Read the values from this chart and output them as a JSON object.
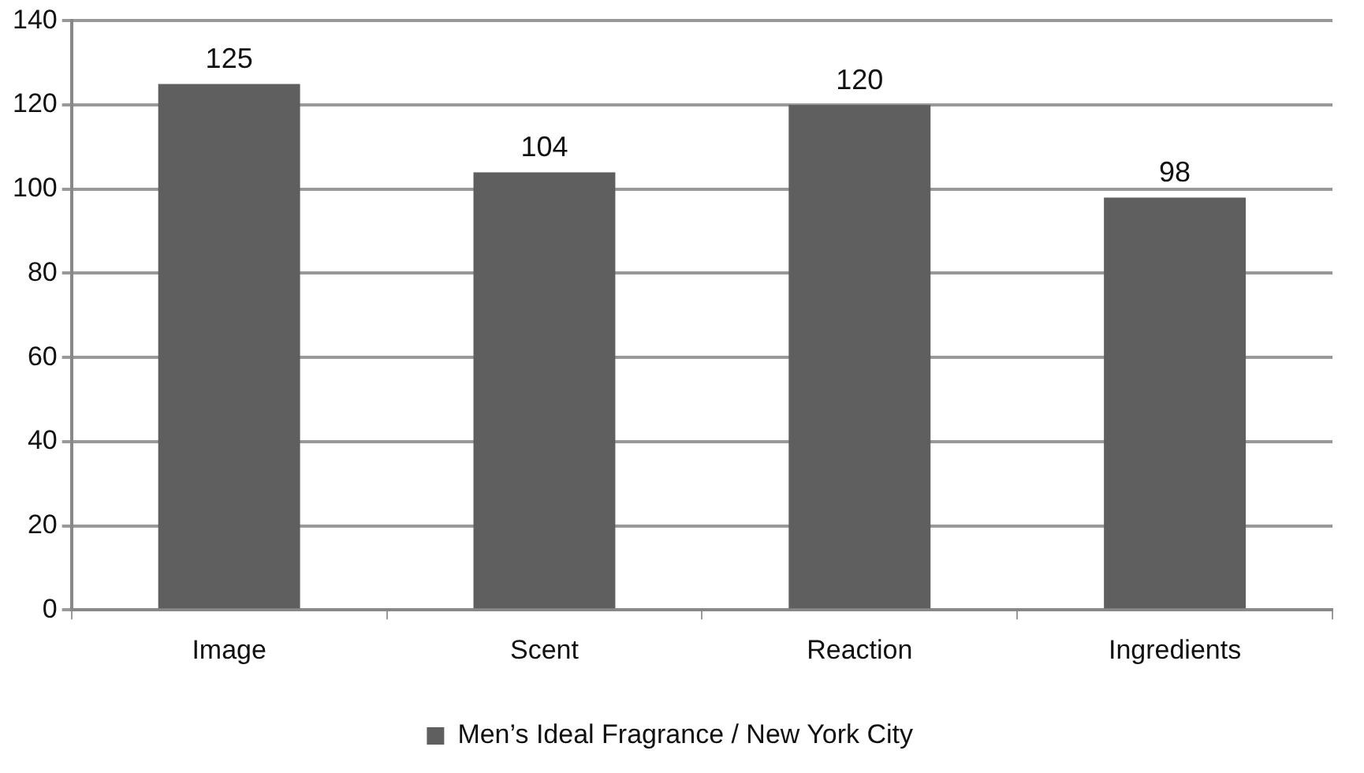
{
  "chart_data": {
    "type": "bar",
    "categories": [
      "Image",
      "Scent",
      "Reaction",
      "Ingredients"
    ],
    "series": [
      {
        "name": "Men’s Ideal Fragrance / New York City",
        "color": "#5f5f5f",
        "values": [
          125,
          104,
          120,
          98
        ]
      }
    ],
    "ylim": [
      0,
      140
    ],
    "yticks": [
      0,
      20,
      40,
      60,
      80,
      100,
      120,
      140
    ],
    "grid": "y",
    "legend": "bottom",
    "data_labels": true
  }
}
